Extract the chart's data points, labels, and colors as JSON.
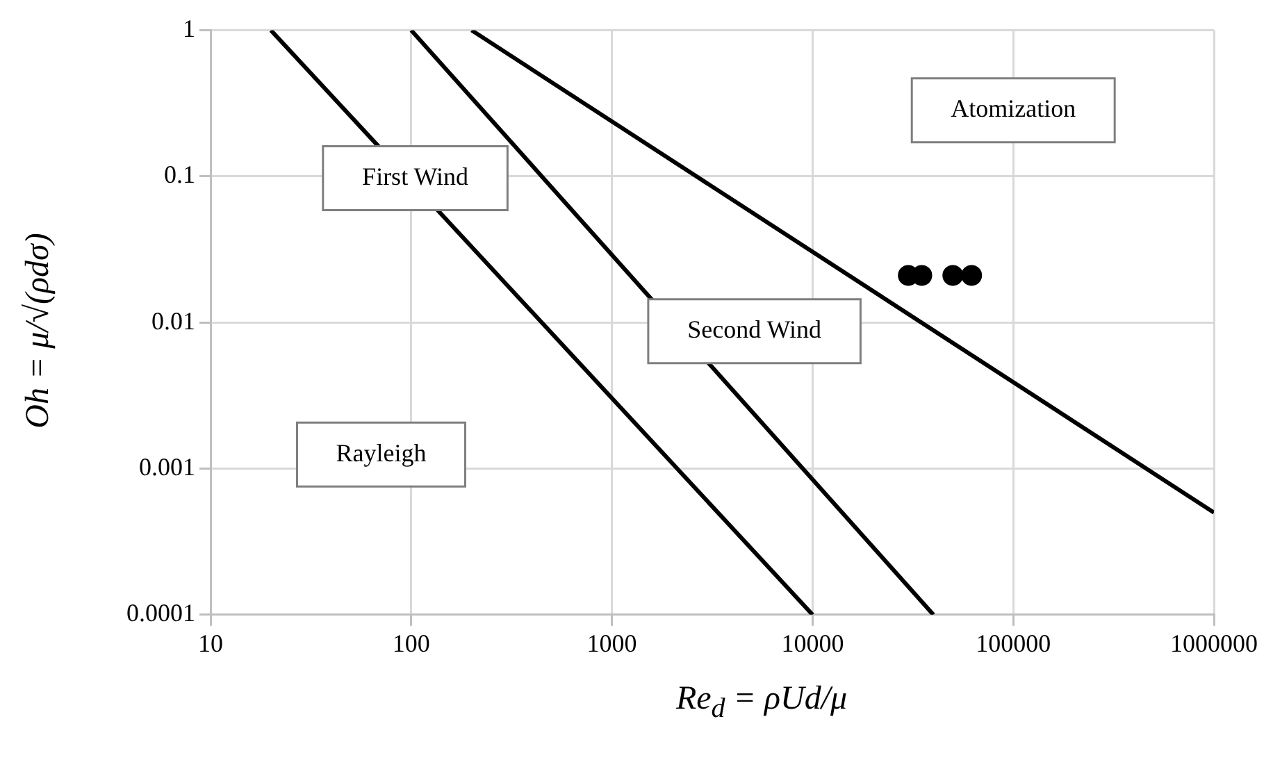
{
  "chart_data": {
    "type": "line",
    "xlabel": "Re$_{d}$ = ρUd/μ",
    "ylabel": "Oh = μ/√(ρdσ)",
    "log": "xy",
    "grid": true,
    "xlim": [
      10,
      1000000
    ],
    "xticks": [
      10,
      100,
      1000,
      10000,
      100000,
      1000000
    ],
    "ylim": [
      0.0001,
      1
    ],
    "yticks": [
      0.0001,
      0.001,
      0.01,
      0.1,
      1
    ],
    "series": [
      {
        "color": "#000000",
        "marker": "none",
        "x": [
          20,
          10000
        ],
        "values": [
          1,
          0.0001
        ]
      },
      {
        "color": "#000000",
        "marker": "none",
        "x": [
          100,
          40000
        ],
        "values": [
          1,
          0.0001
        ]
      },
      {
        "color": "#000000",
        "marker": "none",
        "x": [
          200,
          1000000
        ],
        "values": [
          1,
          0.0005
        ]
      },
      {
        "type": "scatter",
        "color": "#000000",
        "marker": "circle",
        "x": [
          30000,
          35000,
          50000,
          62000
        ],
        "values": [
          0.021,
          0.021,
          0.021,
          0.021
        ]
      }
    ],
    "annotations": [
      "Atomization",
      "First Wind",
      "Second Wind",
      "Rayleigh"
    ]
  }
}
